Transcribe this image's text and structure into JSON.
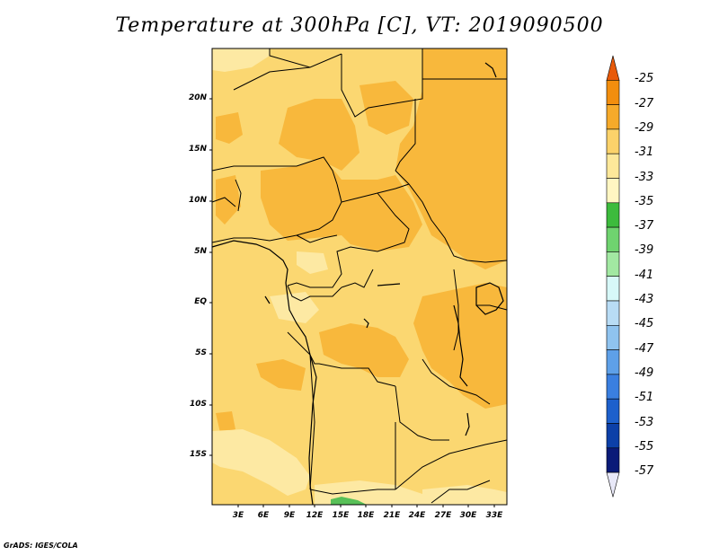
{
  "title": "Temperature at 300hPa [C], VT: 2019090500",
  "credit": "GrADS: IGES/COLA",
  "y_ticks": [
    "20N",
    "15N",
    "10N",
    "5N",
    "EQ",
    "5S",
    "10S",
    "15S"
  ],
  "x_ticks": [
    "3E",
    "6E",
    "9E",
    "12E",
    "15E",
    "18E",
    "21E",
    "24E",
    "27E",
    "30E",
    "33E"
  ],
  "colorbar": {
    "labels": [
      "-25",
      "-27",
      "-29",
      "-31",
      "-33",
      "-35",
      "-37",
      "-39",
      "-41",
      "-43",
      "-45",
      "-47",
      "-49",
      "-51",
      "-53",
      "-55",
      "-57"
    ],
    "colors": [
      "#e85a0a",
      "#f28e0e",
      "#f6aa2a",
      "#fbd26a",
      "#fde89a",
      "#fff6c2",
      "#3dbb3d",
      "#6fd36f",
      "#a2e8a2",
      "#d7f8f8",
      "#b8dcf5",
      "#8fc3ef",
      "#5ea0e8",
      "#3a7fe0",
      "#1d60cc",
      "#0c40a8",
      "#0a1a78",
      "#e8e8f8"
    ]
  },
  "map": {
    "lon_range": [
      0,
      34
    ],
    "lat_range": [
      -20,
      24.5
    ],
    "field_colors": {
      "warm": "#f8b83c",
      "mid": "#fbd771",
      "cool": "#fde9a3",
      "green": "#58c058"
    }
  }
}
